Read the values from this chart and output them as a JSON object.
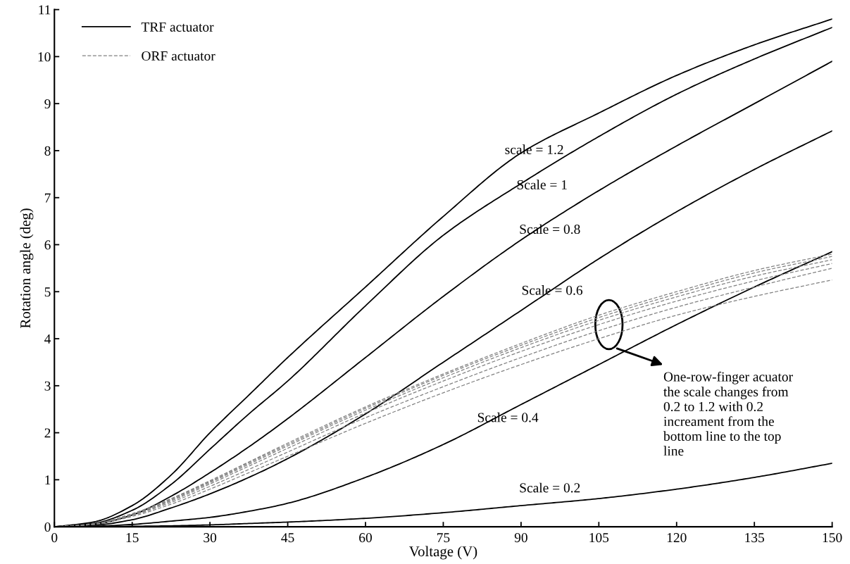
{
  "chart_data": {
    "type": "line",
    "xlabel": "Voltage (V)",
    "ylabel": "Rotation angle (deg)",
    "x": [
      0,
      7.5,
      15,
      22.5,
      30,
      37.5,
      45,
      60,
      75,
      90,
      105,
      120,
      135,
      150
    ],
    "series": [
      {
        "name": "TRF actuator",
        "color": "#000000",
        "line_style": "solid",
        "values": [
          0,
          0.1,
          0.45,
          1.1,
          2.0,
          2.8,
          3.6,
          5.1,
          6.6,
          7.95,
          8.8,
          9.6,
          10.25,
          10.8
        ]
      },
      {
        "color": "#000000",
        "line_style": "solid",
        "values": [
          0,
          0.07,
          0.35,
          0.9,
          1.65,
          2.4,
          3.1,
          4.7,
          6.2,
          7.3,
          8.3,
          9.2,
          9.95,
          10.62
        ]
      },
      {
        "color": "#000000",
        "line_style": "solid",
        "values": [
          0,
          0.05,
          0.25,
          0.65,
          1.15,
          1.7,
          2.3,
          3.6,
          4.9,
          6.1,
          7.15,
          8.1,
          9.0,
          9.9
        ]
      },
      {
        "color": "#000000",
        "line_style": "solid",
        "values": [
          0,
          0.03,
          0.15,
          0.4,
          0.7,
          1.05,
          1.45,
          2.4,
          3.5,
          4.6,
          5.7,
          6.7,
          7.6,
          8.42
        ]
      },
      {
        "color": "#000000",
        "line_style": "solid",
        "values": [
          0,
          0.01,
          0.05,
          0.12,
          0.2,
          0.33,
          0.5,
          1.05,
          1.75,
          2.6,
          3.45,
          4.3,
          5.1,
          5.85
        ]
      },
      {
        "color": "#000000",
        "line_style": "solid",
        "values": [
          0,
          0,
          0.01,
          0.02,
          0.04,
          0.07,
          0.1,
          0.18,
          0.3,
          0.45,
          0.6,
          0.8,
          1.05,
          1.35
        ]
      },
      {
        "name": "ORF actuator",
        "color": "#808080",
        "line_style": "dashed",
        "values": [
          0,
          0.06,
          0.28,
          0.6,
          0.98,
          1.38,
          1.78,
          2.55,
          3.25,
          3.9,
          4.5,
          5.0,
          5.45,
          5.8
        ]
      },
      {
        "color": "#808080",
        "line_style": "dashed",
        "values": [
          0,
          0.06,
          0.27,
          0.59,
          0.96,
          1.36,
          1.75,
          2.52,
          3.22,
          3.86,
          4.45,
          4.95,
          5.4,
          5.75
        ]
      },
      {
        "color": "#808080",
        "line_style": "dashed",
        "values": [
          0,
          0.06,
          0.26,
          0.57,
          0.94,
          1.33,
          1.72,
          2.48,
          3.17,
          3.81,
          4.39,
          4.89,
          5.33,
          5.68
        ]
      },
      {
        "color": "#808080",
        "line_style": "dashed",
        "values": [
          0,
          0.05,
          0.25,
          0.55,
          0.91,
          1.29,
          1.67,
          2.42,
          3.1,
          3.73,
          4.3,
          4.8,
          5.23,
          5.6
        ]
      },
      {
        "color": "#808080",
        "line_style": "dashed",
        "values": [
          0,
          0.05,
          0.24,
          0.52,
          0.86,
          1.22,
          1.59,
          2.32,
          2.98,
          3.6,
          4.17,
          4.67,
          5.1,
          5.5
        ]
      },
      {
        "color": "#808080",
        "line_style": "dashed",
        "values": [
          0,
          0.05,
          0.22,
          0.48,
          0.8,
          1.15,
          1.5,
          2.2,
          2.85,
          3.45,
          4.0,
          4.5,
          4.9,
          5.25
        ]
      }
    ],
    "xlim": [
      0,
      150
    ],
    "xticks": [
      0,
      15,
      30,
      45,
      60,
      75,
      90,
      105,
      120,
      135,
      150
    ],
    "ylim": [
      0,
      11
    ],
    "yticks": [
      0,
      1,
      2,
      3,
      4,
      5,
      6,
      7,
      8,
      9,
      10,
      11
    ],
    "grid": false,
    "legend": "top left",
    "marker": "none",
    "annotations": [
      "scale = 1.2",
      "Scale = 1",
      "Scale = 0.8",
      "Scale = 0.6",
      "Scale = 0.4",
      "Scale = 0.2",
      "One-row-finger acuator\nthe scale changes from\n0.2 to 1.2 with 0.2\nincreament from the\nbottom line to the top\nline"
    ]
  }
}
